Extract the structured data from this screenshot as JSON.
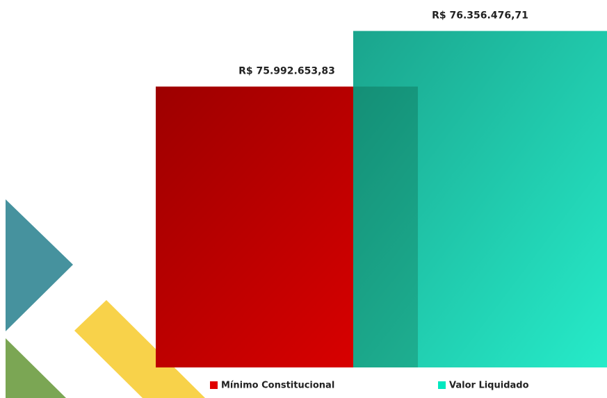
{
  "chart_data": {
    "type": "bar",
    "series": [
      {
        "name": "Mínimo Constitucional",
        "color": "#e00000",
        "values": [
          75992653.83
        ],
        "value_labels": [
          "R$ 75.992.653,83"
        ]
      },
      {
        "name": "Valor Liquidado",
        "color": "#00e8c0",
        "values": [
          76356476.71
        ],
        "value_labels": [
          "R$ 76.356.476,71"
        ]
      }
    ],
    "ylim": [
      74155000,
      76400000
    ]
  }
}
